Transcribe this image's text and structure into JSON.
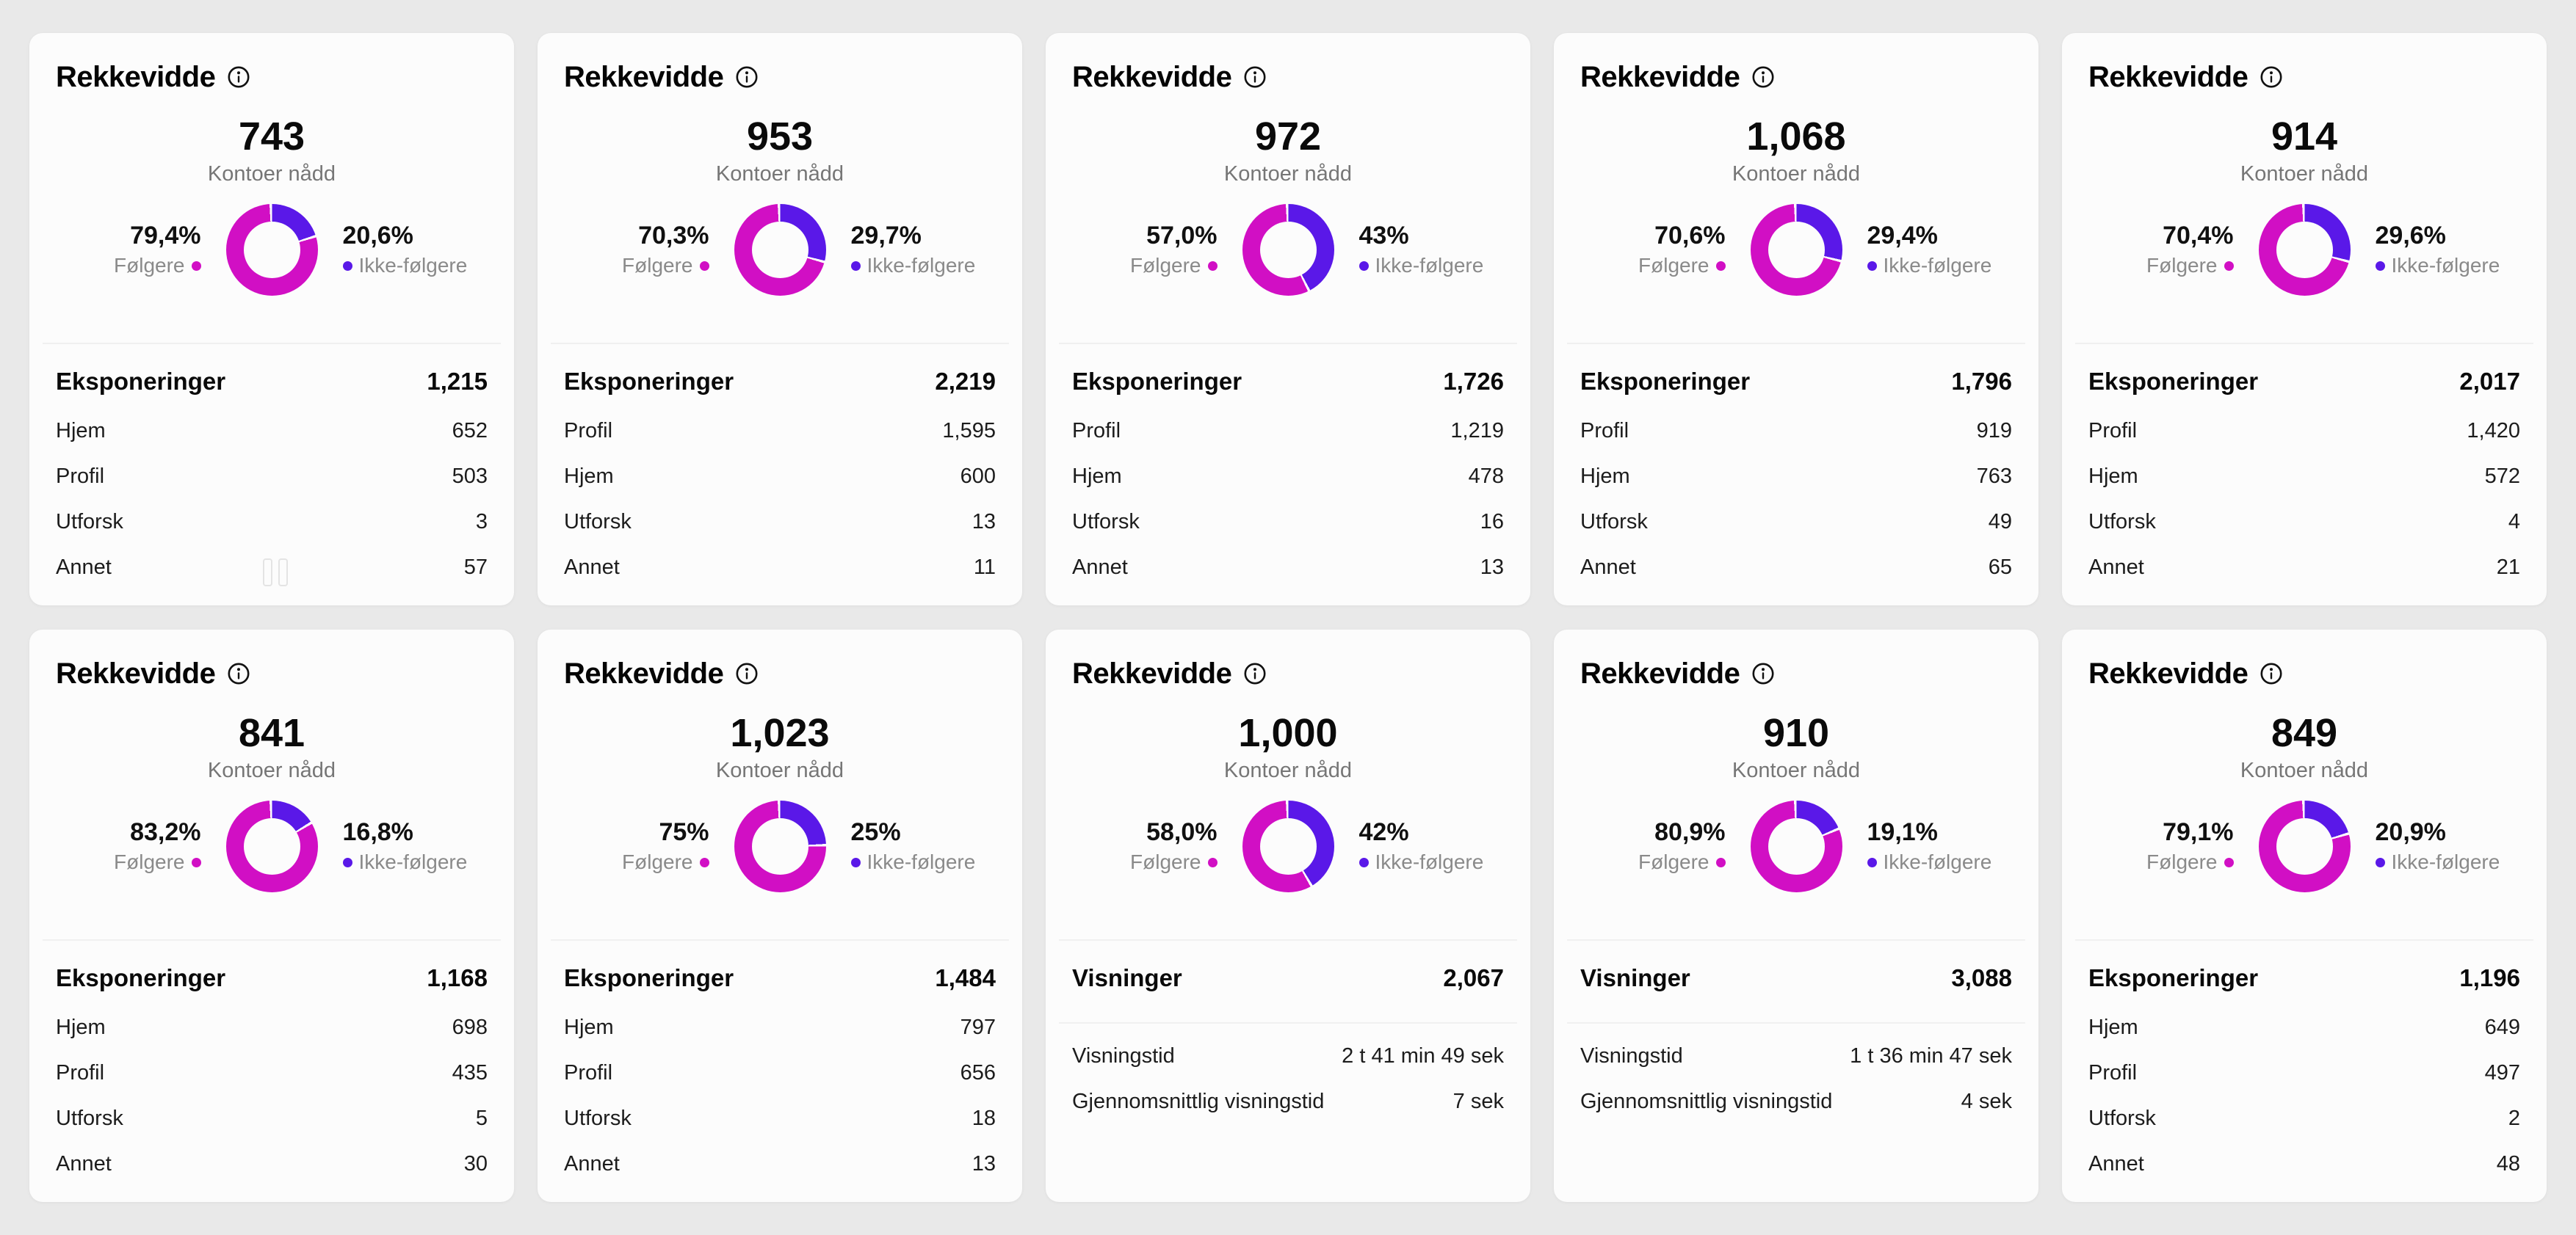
{
  "page": {
    "background": "#e9e9e9",
    "card_background": "#fcfcfc"
  },
  "card_common": {
    "title": "Rekkevidde",
    "info_icon": "info-circle-icon",
    "reached_label": "Kontoer nådd",
    "followers_label": "Følgere",
    "non_followers_label": "Ikke-følgere",
    "colors": {
      "followers": "#d10fc4",
      "non_followers": "#5a18e8"
    }
  },
  "cards": [
    {
      "reach": "743",
      "followers_pct": "79,4%",
      "non_followers_pct": "20,6%",
      "section": {
        "title": "Eksponeringer",
        "total": "1,215",
        "divider": false,
        "rows": [
          {
            "label": "Hjem",
            "value": "652"
          },
          {
            "label": "Profil",
            "value": "503"
          },
          {
            "label": "Utforsk",
            "value": "3"
          },
          {
            "label": "Annet",
            "value": "57"
          }
        ]
      }
    },
    {
      "reach": "953",
      "followers_pct": "70,3%",
      "non_followers_pct": "29,7%",
      "section": {
        "title": "Eksponeringer",
        "total": "2,219",
        "divider": false,
        "rows": [
          {
            "label": "Profil",
            "value": "1,595"
          },
          {
            "label": "Hjem",
            "value": "600"
          },
          {
            "label": "Utforsk",
            "value": "13"
          },
          {
            "label": "Annet",
            "value": "11"
          }
        ]
      }
    },
    {
      "reach": "972",
      "followers_pct": "57,0%",
      "non_followers_pct": "43%",
      "section": {
        "title": "Eksponeringer",
        "total": "1,726",
        "divider": false,
        "rows": [
          {
            "label": "Profil",
            "value": "1,219"
          },
          {
            "label": "Hjem",
            "value": "478"
          },
          {
            "label": "Utforsk",
            "value": "16"
          },
          {
            "label": "Annet",
            "value": "13"
          }
        ]
      }
    },
    {
      "reach": "1,068",
      "followers_pct": "70,6%",
      "non_followers_pct": "29,4%",
      "section": {
        "title": "Eksponeringer",
        "total": "1,796",
        "divider": false,
        "rows": [
          {
            "label": "Profil",
            "value": "919"
          },
          {
            "label": "Hjem",
            "value": "763"
          },
          {
            "label": "Utforsk",
            "value": "49"
          },
          {
            "label": "Annet",
            "value": "65"
          }
        ]
      }
    },
    {
      "reach": "914",
      "followers_pct": "70,4%",
      "non_followers_pct": "29,6%",
      "section": {
        "title": "Eksponeringer",
        "total": "2,017",
        "divider": false,
        "rows": [
          {
            "label": "Profil",
            "value": "1,420"
          },
          {
            "label": "Hjem",
            "value": "572"
          },
          {
            "label": "Utforsk",
            "value": "4"
          },
          {
            "label": "Annet",
            "value": "21"
          }
        ]
      }
    },
    {
      "reach": "841",
      "followers_pct": "83,2%",
      "non_followers_pct": "16,8%",
      "section": {
        "title": "Eksponeringer",
        "total": "1,168",
        "divider": false,
        "rows": [
          {
            "label": "Hjem",
            "value": "698"
          },
          {
            "label": "Profil",
            "value": "435"
          },
          {
            "label": "Utforsk",
            "value": "5"
          },
          {
            "label": "Annet",
            "value": "30"
          }
        ]
      }
    },
    {
      "reach": "1,023",
      "followers_pct": "75%",
      "non_followers_pct": "25%",
      "section": {
        "title": "Eksponeringer",
        "total": "1,484",
        "divider": false,
        "rows": [
          {
            "label": "Hjem",
            "value": "797"
          },
          {
            "label": "Profil",
            "value": "656"
          },
          {
            "label": "Utforsk",
            "value": "18"
          },
          {
            "label": "Annet",
            "value": "13"
          }
        ]
      }
    },
    {
      "reach": "1,000",
      "followers_pct": "58,0%",
      "non_followers_pct": "42%",
      "section": {
        "title": "Visninger",
        "total": "2,067",
        "divider": true,
        "rows": [
          {
            "label": "Visningstid",
            "value": "2 t 41 min 49 sek"
          },
          {
            "label": "Gjennomsnittlig visningstid",
            "value": "7 sek"
          }
        ]
      }
    },
    {
      "reach": "910",
      "followers_pct": "80,9%",
      "non_followers_pct": "19,1%",
      "section": {
        "title": "Visninger",
        "total": "3,088",
        "divider": true,
        "rows": [
          {
            "label": "Visningstid",
            "value": "1 t 36 min 47 sek"
          },
          {
            "label": "Gjennomsnittlig visningstid",
            "value": "4 sek"
          }
        ]
      }
    },
    {
      "reach": "849",
      "followers_pct": "79,1%",
      "non_followers_pct": "20,9%",
      "section": {
        "title": "Eksponeringer",
        "total": "1,196",
        "divider": false,
        "rows": [
          {
            "label": "Hjem",
            "value": "649"
          },
          {
            "label": "Profil",
            "value": "497"
          },
          {
            "label": "Utforsk",
            "value": "2"
          },
          {
            "label": "Annet",
            "value": "48"
          }
        ]
      }
    }
  ],
  "chart_data": [
    {
      "type": "pie",
      "title": "Rekkevidde",
      "center_label": "743",
      "labels": [
        "Følgere",
        "Ikke-følgere"
      ],
      "values": [
        79.4,
        20.6
      ]
    },
    {
      "type": "pie",
      "title": "Rekkevidde",
      "center_label": "953",
      "labels": [
        "Følgere",
        "Ikke-følgere"
      ],
      "values": [
        70.3,
        29.7
      ]
    },
    {
      "type": "pie",
      "title": "Rekkevidde",
      "center_label": "972",
      "labels": [
        "Følgere",
        "Ikke-følgere"
      ],
      "values": [
        57.0,
        43.0
      ]
    },
    {
      "type": "pie",
      "title": "Rekkevidde",
      "center_label": "1,068",
      "labels": [
        "Følgere",
        "Ikke-følgere"
      ],
      "values": [
        70.6,
        29.4
      ]
    },
    {
      "type": "pie",
      "title": "Rekkevidde",
      "center_label": "914",
      "labels": [
        "Følgere",
        "Ikke-følgere"
      ],
      "values": [
        70.4,
        29.6
      ]
    },
    {
      "type": "pie",
      "title": "Rekkevidde",
      "center_label": "841",
      "labels": [
        "Følgere",
        "Ikke-følgere"
      ],
      "values": [
        83.2,
        16.8
      ]
    },
    {
      "type": "pie",
      "title": "Rekkevidde",
      "center_label": "1,023",
      "labels": [
        "Følgere",
        "Ikke-følgere"
      ],
      "values": [
        75.0,
        25.0
      ]
    },
    {
      "type": "pie",
      "title": "Rekkevidde",
      "center_label": "1,000",
      "labels": [
        "Følgere",
        "Ikke-følgere"
      ],
      "values": [
        58.0,
        42.0
      ]
    },
    {
      "type": "pie",
      "title": "Rekkevidde",
      "center_label": "910",
      "labels": [
        "Følgere",
        "Ikke-følgere"
      ],
      "values": [
        80.9,
        19.1
      ]
    },
    {
      "type": "pie",
      "title": "Rekkevidde",
      "center_label": "849",
      "labels": [
        "Følgere",
        "Ikke-følgere"
      ],
      "values": [
        79.1,
        20.9
      ]
    }
  ]
}
